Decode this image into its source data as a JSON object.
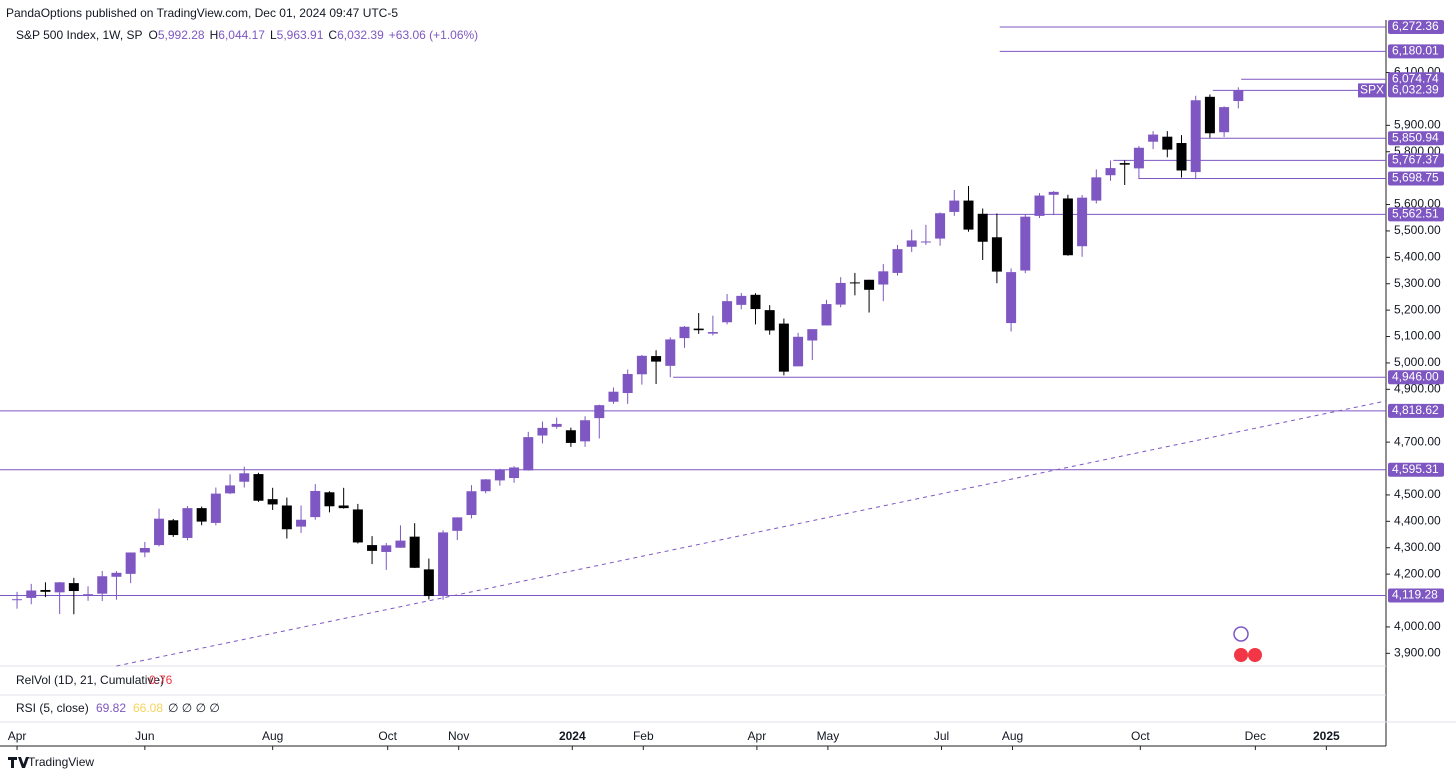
{
  "chart_data": {
    "type": "candlestick",
    "published": "PandaOptions published on TradingView.com, Dec 01, 2024 09:47 UTC-5",
    "title": "S&P 500 Index, 1W, SP",
    "ohlc_legend": [
      {
        "key": "O",
        "value": "5,992.28"
      },
      {
        "key": "H",
        "value": "6,044.17"
      },
      {
        "key": "L",
        "value": "5,963.91"
      },
      {
        "key": "C",
        "value": "6,032.39"
      }
    ],
    "change": "+63.06 (+1.06%)",
    "symbol_tag": "SPX",
    "up_color": "#7e57c2",
    "down_color": "#000000",
    "open": [
      4102,
      4110,
      4140,
      4131,
      4166,
      4124,
      4126,
      4190,
      4201,
      4282,
      4310,
      4404,
      4337,
      4450,
      4394,
      4506,
      4550,
      4579,
      4484,
      4460,
      4380,
      4416,
      4510,
      4460,
      4445,
      4310,
      4284,
      4300,
      4342,
      4218,
      4120,
      4364,
      4424,
      4514,
      4555,
      4564,
      4593,
      4725,
      4758,
      4745,
      4703,
      4791,
      4853,
      4886,
      4957,
      5026,
      4989,
      5094,
      5130,
      5111,
      5154,
      5220,
      5258,
      5200,
      5149,
      4987,
      5085,
      5142,
      5221,
      5305,
      5315,
      5297,
      5341,
      5440,
      5459,
      5471,
      5572,
      5615,
      5565,
      5476,
      5151,
      5350,
      5557,
      5637,
      5623,
      5442,
      5615,
      5711,
      5757,
      5737,
      5838,
      5857,
      5833,
      5723,
      6008,
      5874,
      5992
    ],
    "high": [
      4133,
      4163,
      4169,
      4170,
      4186,
      4154,
      4212,
      4212,
      4281,
      4322,
      4448,
      4409,
      4458,
      4456,
      4528,
      4578,
      4607,
      4584,
      4527,
      4490,
      4460,
      4541,
      4514,
      4527,
      4466,
      4344,
      4318,
      4385,
      4393,
      4259,
      4366,
      4415,
      4537,
      4560,
      4599,
      4609,
      4739,
      4778,
      4793,
      4755,
      4798,
      4842,
      4907,
      4975,
      5030,
      5048,
      5097,
      5140,
      5189,
      5179,
      5261,
      5265,
      5264,
      5219,
      5168,
      5114,
      5123,
      5239,
      5325,
      5341,
      5315,
      5375,
      5447,
      5505,
      5523,
      5570,
      5655,
      5670,
      5585,
      5566,
      5358,
      5563,
      5643,
      5651,
      5637,
      5636,
      5733,
      5767,
      5767,
      5822,
      5878,
      5878,
      5863,
      6012,
      6017,
      5972,
      6044
    ],
    "low": [
      4069,
      4086,
      4113,
      4049,
      4048,
      4099,
      4098,
      4103,
      4166,
      4264,
      4305,
      4341,
      4328,
      4385,
      4385,
      4503,
      4528,
      4474,
      4443,
      4335,
      4356,
      4406,
      4434,
      4448,
      4316,
      4238,
      4216,
      4300,
      4223,
      4104,
      4103,
      4329,
      4411,
      4506,
      4535,
      4546,
      4592,
      4695,
      4751,
      4682,
      4682,
      4714,
      4845,
      4845,
      4918,
      4920,
      4946,
      5057,
      5110,
      5104,
      5146,
      5203,
      5146,
      5107,
      4953,
      4990,
      5011,
      5142,
      5211,
      5256,
      5191,
      5234,
      5331,
      5420,
      5447,
      5444,
      5557,
      5497,
      5390,
      5302,
      5119,
      5340,
      5549,
      5560,
      5406,
      5402,
      5604,
      5690,
      5674,
      5696,
      5810,
      5779,
      5702,
      5696,
      5853,
      5856,
      5964
    ],
    "close": [
      4105,
      4138,
      4133,
      4169,
      4136,
      4124,
      4192,
      4205,
      4282,
      4299,
      4410,
      4348,
      4450,
      4399,
      4505,
      4536,
      4582,
      4478,
      4464,
      4370,
      4406,
      4515,
      4457,
      4450,
      4320,
      4288,
      4309,
      4327,
      4224,
      4117,
      4358,
      4415,
      4514,
      4559,
      4595,
      4604,
      4719,
      4754,
      4769,
      4697,
      4783,
      4840,
      4891,
      4958,
      5027,
      5005,
      5089,
      5137,
      5124,
      5117,
      5234,
      5254,
      5204,
      5123,
      4967,
      5099,
      5128,
      5223,
      5303,
      5304,
      5277,
      5347,
      5431,
      5464,
      5460,
      5567,
      5615,
      5505,
      5459,
      5346,
      5344,
      5554,
      5634,
      5648,
      5408,
      5626,
      5703,
      5738,
      5751,
      5815,
      5865,
      5808,
      5729,
      5995,
      5870,
      5969,
      6032
    ],
    "xlim": [
      -1.2,
      96.4
    ],
    "xticks": [
      {
        "value": 0,
        "label": "Apr"
      },
      {
        "value": 9,
        "label": "Jun"
      },
      {
        "value": 18,
        "label": "Aug"
      },
      {
        "value": 26.1,
        "label": "Oct"
      },
      {
        "value": 31.1,
        "label": "Nov"
      },
      {
        "value": 39.1,
        "label": "2024"
      },
      {
        "value": 44.1,
        "label": "Feb"
      },
      {
        "value": 52.1,
        "label": "Apr"
      },
      {
        "value": 57.1,
        "label": "May"
      },
      {
        "value": 65.1,
        "label": "Jul"
      },
      {
        "value": 70.1,
        "label": "Aug"
      },
      {
        "value": 79.1,
        "label": "Oct"
      },
      {
        "value": 87.2,
        "label": "Dec"
      },
      {
        "value": 92.2,
        "label": "2025"
      }
    ],
    "ylim": [
      3852,
      6299
    ],
    "yticks": [
      {
        "value": 3900,
        "label": "3,900.00"
      },
      {
        "value": 4000,
        "label": "4,000.00"
      },
      {
        "value": 4200,
        "label": "4,200.00"
      },
      {
        "value": 4300,
        "label": "4,300.00"
      },
      {
        "value": 4400,
        "label": "4,400.00"
      },
      {
        "value": 4500,
        "label": "4,500.00"
      },
      {
        "value": 4700,
        "label": "4,700.00"
      },
      {
        "value": 4900,
        "label": "4,900.00"
      },
      {
        "value": 5000,
        "label": "5,000.00"
      },
      {
        "value": 5100,
        "label": "5,100.00"
      },
      {
        "value": 5200,
        "label": "5,200.00"
      },
      {
        "value": 5300,
        "label": "5,300.00"
      },
      {
        "value": 5400,
        "label": "5,400.00"
      },
      {
        "value": 5500,
        "label": "5,500.00"
      },
      {
        "value": 5600,
        "label": "5,600.00"
      },
      {
        "value": 5800,
        "label": "5,800.00"
      },
      {
        "value": 5900,
        "label": "5,900.00"
      },
      {
        "value": 6100,
        "label": "6,100.00"
      }
    ],
    "levels": [
      {
        "value": 6272.36,
        "label": "6,272.36"
      },
      {
        "value": 6180.01,
        "label": "6,180.01"
      },
      {
        "value": 6074.74,
        "label": "6,074.74"
      },
      {
        "value": 6032.39,
        "label": "6,032.39"
      },
      {
        "value": 5850.94,
        "label": "5,850.94"
      },
      {
        "value": 5767.37,
        "label": "5,767.37"
      },
      {
        "value": 5698.75,
        "label": "5,698.75"
      },
      {
        "value": 5562.51,
        "label": "5,562.51"
      },
      {
        "value": 4946.0,
        "label": "4,946.00"
      },
      {
        "value": 4818.62,
        "label": "4,818.62"
      },
      {
        "value": 4595.31,
        "label": "4,595.31"
      },
      {
        "value": 4119.28,
        "label": "4,119.28"
      }
    ],
    "trendline": {
      "x": [
        7,
        96.4
      ],
      "y": [
        3852,
        4856
      ]
    },
    "relvol": {
      "name": "RelVol (1D, 21, Cumulative)",
      "value": "0.76"
    },
    "rsi": {
      "name": "RSI (5, close)",
      "values": [
        "69.82",
        "66.08"
      ],
      "extra": "∅ ∅ ∅ ∅"
    },
    "brand": "TradingView"
  }
}
